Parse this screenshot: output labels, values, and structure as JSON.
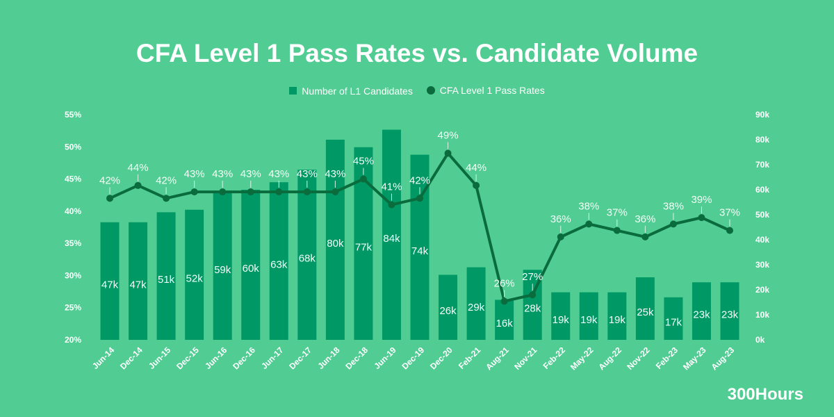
{
  "chart_data": {
    "type": "bar+line",
    "title": "CFA Level 1 Pass Rates vs. Candidate Volume",
    "categories": [
      "Jun-14",
      "Dec-14",
      "Jun-15",
      "Dec-15",
      "Jun-16",
      "Dec-16",
      "Jun-17",
      "Dec-17",
      "Jun-18",
      "Dec-18",
      "Jun-19",
      "Dec-19",
      "Dec-20",
      "Feb-21",
      "Aug-21",
      "Nov-21",
      "Feb-22",
      "May-22",
      "Aug-22",
      "Nov-22",
      "Feb-23",
      "May-23",
      "Aug-23"
    ],
    "series": [
      {
        "name": "Number of L1 Candidates",
        "type": "bar",
        "axis": "right",
        "color": "#009966",
        "values": [
          47,
          47,
          51,
          52,
          59,
          60,
          63,
          68,
          80,
          77,
          84,
          74,
          26,
          29,
          16,
          28,
          19,
          19,
          19,
          25,
          17,
          23,
          23
        ],
        "labels": [
          "47k",
          "47k",
          "51k",
          "52k",
          "59k",
          "60k",
          "63k",
          "68k",
          "80k",
          "77k",
          "84k",
          "74k",
          "26k",
          "29k",
          "16k",
          "28k",
          "19k",
          "19k",
          "19k",
          "25k",
          "17k",
          "23k",
          "23k"
        ]
      },
      {
        "name": "CFA Level 1 Pass Rates",
        "type": "line",
        "axis": "left",
        "color": "#0a6b3c",
        "values": [
          42,
          44,
          42,
          43,
          43,
          43,
          43,
          43,
          43,
          45,
          41,
          42,
          49,
          44,
          26,
          27,
          36,
          38,
          37,
          36,
          38,
          39,
          37
        ],
        "labels": [
          "42%",
          "44%",
          "42%",
          "43%",
          "43%",
          "43%",
          "43%",
          "43%",
          "43%",
          "45%",
          "41%",
          "42%",
          "49%",
          "44%",
          "26%",
          "27%",
          "36%",
          "38%",
          "37%",
          "36%",
          "38%",
          "39%",
          "37%"
        ]
      }
    ],
    "left_axis": {
      "range": [
        20,
        55
      ],
      "ticks": [
        "20%",
        "25%",
        "30%",
        "35%",
        "40%",
        "45%",
        "50%",
        "55%"
      ]
    },
    "right_axis": {
      "range": [
        0,
        90
      ],
      "ticks": [
        "0k",
        "10k",
        "20k",
        "30k",
        "40k",
        "50k",
        "60k",
        "70k",
        "80k",
        "90k"
      ]
    },
    "legend": "top",
    "grid": false
  },
  "brand": "300Hours"
}
